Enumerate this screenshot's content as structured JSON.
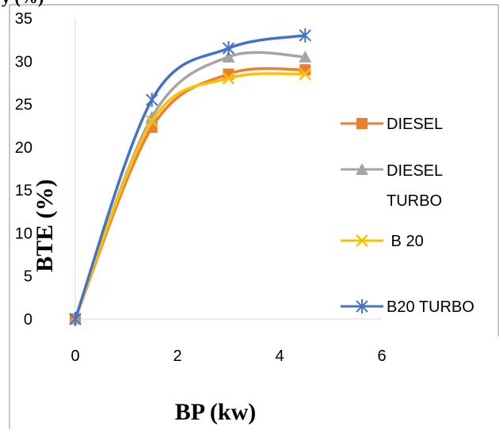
{
  "chart_data": {
    "type": "line",
    "title": "",
    "xlabel": "BP (kw)",
    "ylabel": "BTE (%)",
    "xlim": [
      0,
      6
    ],
    "ylim": [
      0,
      35
    ],
    "x_ticks": [
      "0",
      "2",
      "4",
      "6"
    ],
    "y_ticks": [
      "0",
      "5",
      "10",
      "15",
      "20",
      "25",
      "30",
      "35"
    ],
    "grid": false,
    "legend_position": "right",
    "series": [
      {
        "name": "DIESEL",
        "color": "#ED7D31",
        "marker": "square",
        "x": [
          0,
          1.5,
          3,
          4.5
        ],
        "y": [
          0,
          22.3,
          28.5,
          29
        ]
      },
      {
        "name": "DIESEL TURBO",
        "color": "#A5A5A5",
        "marker": "triangle",
        "x": [
          0,
          1.5,
          3,
          4.5
        ],
        "y": [
          0,
          23.5,
          30.5,
          30.5
        ]
      },
      {
        "name": " B 20",
        "color": "#FFC000",
        "marker": "x",
        "x": [
          0,
          1.5,
          3,
          4.5
        ],
        "y": [
          0,
          23,
          28,
          28.5
        ]
      },
      {
        "name": "B20 TURBO",
        "color": "#4472C4",
        "marker": "star",
        "x": [
          0,
          1.5,
          3,
          4.5
        ],
        "y": [
          0,
          25.5,
          31.5,
          33
        ]
      }
    ]
  },
  "legend": {
    "diesel_label": "DIESEL",
    "diesel_turbo_line1": "DIESEL",
    "diesel_turbo_line2": "TURBO",
    "b20_label": " B 20",
    "b20_turbo_label": "B20 TURBO"
  },
  "y_axis_title_overlap": "y (%)"
}
